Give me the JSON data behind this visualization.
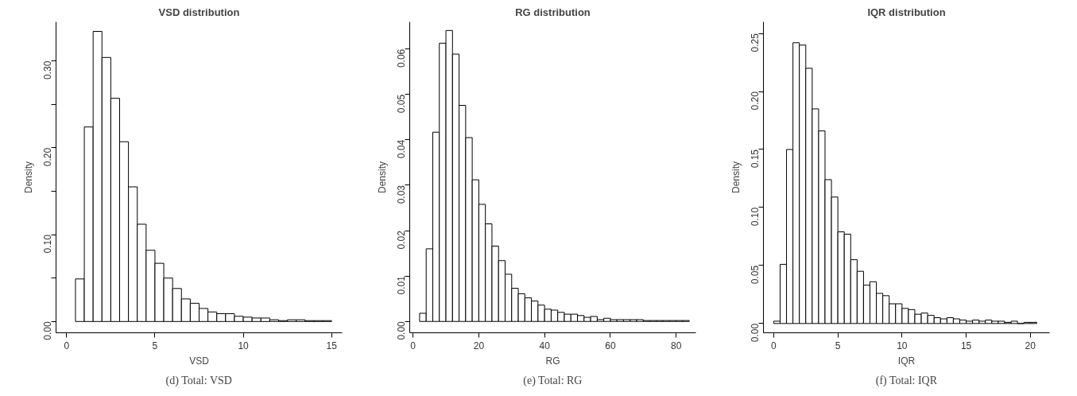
{
  "chart_data": [
    {
      "type": "histogram",
      "title": "VSD distribution",
      "xlabel": "VSD",
      "ylabel": "Density",
      "annotations": [
        "(d) Total: VSD"
      ],
      "bins": [
        0.5,
        1,
        1.5,
        2,
        2.5,
        3,
        3.5,
        4,
        4.5,
        5,
        5.5,
        6,
        6.5,
        7,
        7.5,
        8,
        8.5,
        9,
        9.5,
        10,
        10.5,
        11,
        11.5,
        12,
        12.5,
        13,
        13.5,
        14,
        14.5,
        15
      ],
      "values": [
        0.049,
        0.224,
        0.334,
        0.304,
        0.257,
        0.207,
        0.155,
        0.112,
        0.082,
        0.067,
        0.05,
        0.038,
        0.026,
        0.021,
        0.015,
        0.011,
        0.009,
        0.009,
        0.006,
        0.005,
        0.004,
        0.004,
        0.002,
        0.001,
        0.002,
        0.002,
        0.001,
        0.001,
        0.001
      ],
      "xlim": [
        -0.6,
        15.6
      ],
      "xticks": [
        0,
        5,
        10,
        15
      ],
      "ylim": [
        -0.013,
        0.345
      ],
      "yticks": [
        {
          "value": 0,
          "label": "0.00"
        },
        {
          "value": 0.05,
          "label": null
        },
        {
          "value": 0.1,
          "label": "0.10"
        },
        {
          "value": 0.15,
          "label": null
        },
        {
          "value": 0.2,
          "label": "0.20"
        },
        {
          "value": 0.25,
          "label": null
        },
        {
          "value": 0.3,
          "label": "0.30"
        }
      ],
      "grid": false
    },
    {
      "type": "histogram",
      "title": "RG distribution",
      "xlabel": "RG",
      "ylabel": "Density",
      "annotations": [
        "(e) Total: RG"
      ],
      "bins": [
        2,
        4,
        6,
        8,
        10,
        12,
        14,
        16,
        18,
        20,
        22,
        24,
        26,
        28,
        30,
        32,
        34,
        36,
        38,
        40,
        42,
        44,
        46,
        48,
        50,
        52,
        54,
        56,
        58,
        60,
        62,
        64,
        66,
        68,
        70,
        72,
        74,
        76,
        78,
        80,
        82,
        84
      ],
      "values": [
        0.0018,
        0.016,
        0.0417,
        0.0613,
        0.0641,
        0.0589,
        0.0476,
        0.0405,
        0.0312,
        0.0258,
        0.0215,
        0.0166,
        0.0134,
        0.0104,
        0.0073,
        0.0061,
        0.0052,
        0.0045,
        0.0036,
        0.0027,
        0.0025,
        0.002,
        0.0016,
        0.0016,
        0.0013,
        0.0009,
        0.0011,
        0.0004,
        0.0007,
        0.0004,
        0.0004,
        0.0004,
        0.0004,
        0.0004,
        0.0002,
        0.0002,
        0.0002,
        0.0002,
        0.0002,
        0.0002,
        0.0002
      ],
      "xlim": [
        -1,
        86
      ],
      "xticks": [
        0,
        20,
        40,
        60,
        80
      ],
      "ylim": [
        -0.0025,
        0.066
      ],
      "yticks": [
        {
          "value": 0,
          "label": "0.00"
        },
        {
          "value": 0.01,
          "label": "0.01"
        },
        {
          "value": 0.02,
          "label": "0.02"
        },
        {
          "value": 0.03,
          "label": "0.03"
        },
        {
          "value": 0.04,
          "label": "0.04"
        },
        {
          "value": 0.05,
          "label": "0.05"
        },
        {
          "value": 0.06,
          "label": "0.06"
        }
      ],
      "grid": false
    },
    {
      "type": "histogram",
      "title": "IQR distribution",
      "xlabel": "IQR",
      "ylabel": "Density",
      "annotations": [
        "(f) Total: IQR"
      ],
      "bins": [
        0,
        0.5,
        1,
        1.5,
        2,
        2.5,
        3,
        3.5,
        4,
        4.5,
        5,
        5.5,
        6,
        6.5,
        7,
        7.5,
        8,
        8.5,
        9,
        9.5,
        10,
        10.5,
        11,
        11.5,
        12,
        12.5,
        13,
        13.5,
        14,
        14.5,
        15,
        15.5,
        16,
        16.5,
        17,
        17.5,
        18,
        18.5,
        19,
        19.5,
        20,
        20.5
      ],
      "values": [
        0.002,
        0.051,
        0.15,
        0.242,
        0.24,
        0.22,
        0.185,
        0.166,
        0.124,
        0.109,
        0.079,
        0.077,
        0.055,
        0.045,
        0.033,
        0.036,
        0.026,
        0.024,
        0.017,
        0.017,
        0.013,
        0.012,
        0.008,
        0.009,
        0.007,
        0.005,
        0.004,
        0.005,
        0.004,
        0.003,
        0.002,
        0.003,
        0.002,
        0.003,
        0.002,
        0.002,
        0.001,
        0.002,
        0,
        0.001,
        0.001
      ],
      "xlim": [
        -0.8,
        21.5
      ],
      "xticks": [
        0,
        5,
        10,
        15,
        20
      ],
      "ylim": [
        -0.008,
        0.26
      ],
      "yticks": [
        {
          "value": 0,
          "label": "0.00"
        },
        {
          "value": 0.05,
          "label": "0.05"
        },
        {
          "value": 0.1,
          "label": "0.10"
        },
        {
          "value": 0.15,
          "label": "0.15"
        },
        {
          "value": 0.2,
          "label": "0.20"
        },
        {
          "value": 0.25,
          "label": "0.25"
        }
      ],
      "grid": false
    }
  ]
}
